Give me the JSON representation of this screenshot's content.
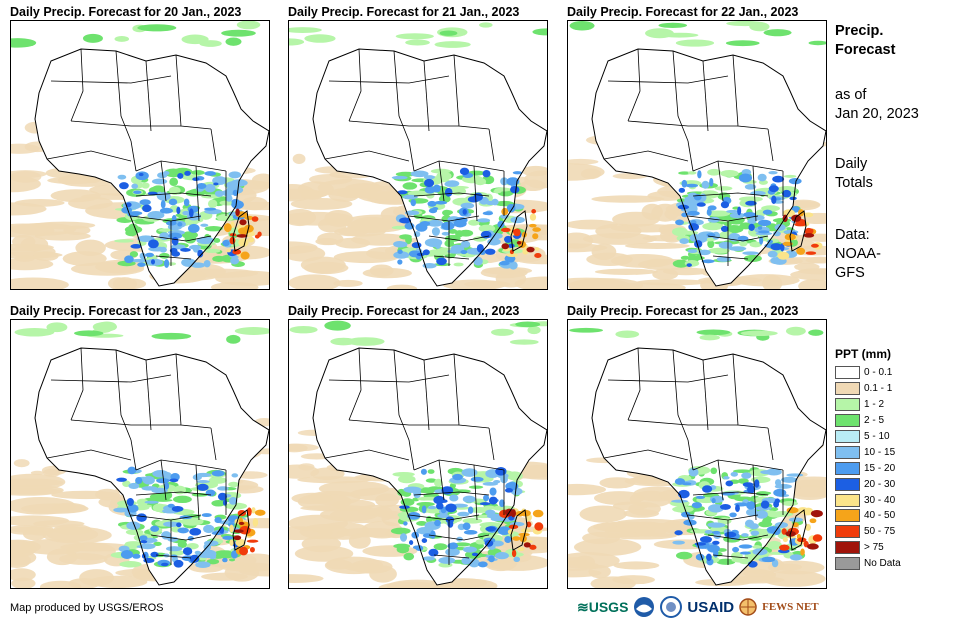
{
  "panels": [
    {
      "title": "Daily Precip. Forecast for 20 Jan., 2023"
    },
    {
      "title": "Daily Precip. Forecast for 21 Jan., 2023"
    },
    {
      "title": "Daily Precip. Forecast for 22 Jan., 2023"
    },
    {
      "title": "Daily Precip. Forecast for 23 Jan., 2023"
    },
    {
      "title": "Daily Precip. Forecast for 24 Jan., 2023"
    },
    {
      "title": "Daily Precip. Forecast for 25 Jan., 2023"
    }
  ],
  "side": {
    "title_line1": "Precip.",
    "title_line2": "Forecast",
    "asof_line1": "as of",
    "asof_line2": "Jan 20, 2023",
    "totals_line1": "Daily",
    "totals_line2": "Totals",
    "data_line1": "Data:",
    "data_line2": "NOAA-",
    "data_line3": "GFS"
  },
  "legend": {
    "title": "PPT (mm)",
    "items": [
      {
        "label": "0 - 0.1",
        "color": "#ffffff"
      },
      {
        "label": "0.1 - 1",
        "color": "#f0d9b5"
      },
      {
        "label": "1 - 2",
        "color": "#b6f5a8"
      },
      {
        "label": "2 - 5",
        "color": "#6ee26e"
      },
      {
        "label": "5 - 10",
        "color": "#b9ecf5"
      },
      {
        "label": "10 - 15",
        "color": "#7fbff0"
      },
      {
        "label": "15 - 20",
        "color": "#4d9cef"
      },
      {
        "label": "20 - 30",
        "color": "#1c5fe3"
      },
      {
        "label": "30 - 40",
        "color": "#fbe48a"
      },
      {
        "label": "40 - 50",
        "color": "#f5a41a"
      },
      {
        "label": "50 - 75",
        "color": "#f03c0b"
      },
      {
        "label": "> 75",
        "color": "#a0140a"
      },
      {
        "label": "No Data",
        "color": "#9a9a9a"
      }
    ]
  },
  "credit": "Map produced by USGS/EROS",
  "logos": {
    "usgs": "USGS",
    "noaa": "NOAA",
    "usaid": "USAID",
    "fewsnet": "FEWS NET"
  }
}
